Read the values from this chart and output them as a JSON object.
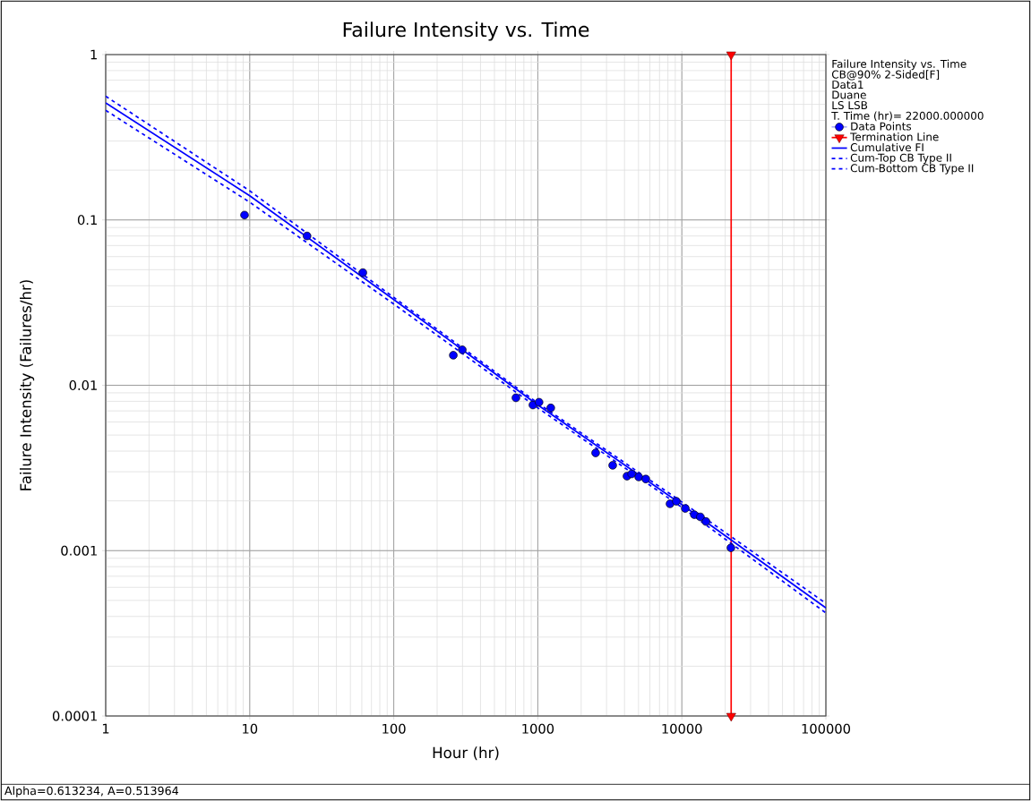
{
  "chart_data": {
    "type": "line",
    "title": "Failure Intensity vs. Time",
    "xlabel": "Hour (hr)",
    "ylabel": "Failure Intensity (Failures/hr)",
    "legend_title": "Failure Intensity vs. Time",
    "annotations": [
      "CB@90% 2-Sided[F]",
      "Data1",
      "Duane",
      "LS LSB",
      "T. Time (hr)= 22000.000000",
      "Alpha=0.613234, A=0.513964"
    ],
    "log": "xy",
    "grid": true,
    "legend": "right",
    "xlim": [
      1,
      100000
    ],
    "ylim": [
      0.0001,
      1
    ],
    "xticks": [
      1,
      10,
      100,
      1000,
      10000,
      100000
    ],
    "yticks": [
      0.0001,
      0.001,
      0.01,
      0.1,
      1
    ],
    "series": [
      {
        "name": "Data Points",
        "type": "scatter",
        "color": "#0000ff",
        "marker": "circle",
        "x": [
          9.2,
          25,
          61,
          259,
          299,
          705,
          925,
          1020,
          1230,
          2520,
          3310,
          4160,
          4480,
          5020,
          5620,
          8280,
          9150,
          10570,
          12200,
          13450,
          14700,
          21900
        ],
        "values": [
          0.107,
          0.08,
          0.048,
          0.0152,
          0.0164,
          0.0084,
          0.0076,
          0.0079,
          0.0073,
          0.0039,
          0.00328,
          0.00282,
          0.00291,
          0.00279,
          0.00271,
          0.00192,
          0.00199,
          0.0018,
          0.00165,
          0.0016,
          0.0015,
          0.00104
        ]
      },
      {
        "name": "Termination Line",
        "color": "#ff0000",
        "marker": "triangle",
        "line_style": "solid",
        "x": [
          22000,
          22000
        ],
        "values": [
          1,
          0.0001
        ]
      },
      {
        "name": "Cumulative FI",
        "color": "#0000ff",
        "marker": "none",
        "line_style": "solid",
        "x": [
          1,
          10,
          100,
          1000,
          10000,
          100000
        ],
        "values": [
          0.51,
          0.14,
          0.033,
          0.0076,
          0.0019,
          0.00045
        ]
      },
      {
        "name": "Cum-Top CB Type II",
        "color": "#0000ff",
        "marker": "none",
        "line_style": "dashed",
        "x": [
          1,
          10,
          100,
          1000,
          10000,
          100000
        ],
        "values": [
          0.56,
          0.15,
          0.034,
          0.0078,
          0.00197,
          0.00048
        ]
      },
      {
        "name": "Cum-Bottom CB Type II",
        "color": "#0000ff",
        "marker": "none",
        "line_style": "dashed",
        "x": [
          1,
          10,
          100,
          1000,
          10000,
          100000
        ],
        "values": [
          0.46,
          0.128,
          0.031,
          0.0073,
          0.00183,
          0.00042
        ]
      }
    ]
  }
}
